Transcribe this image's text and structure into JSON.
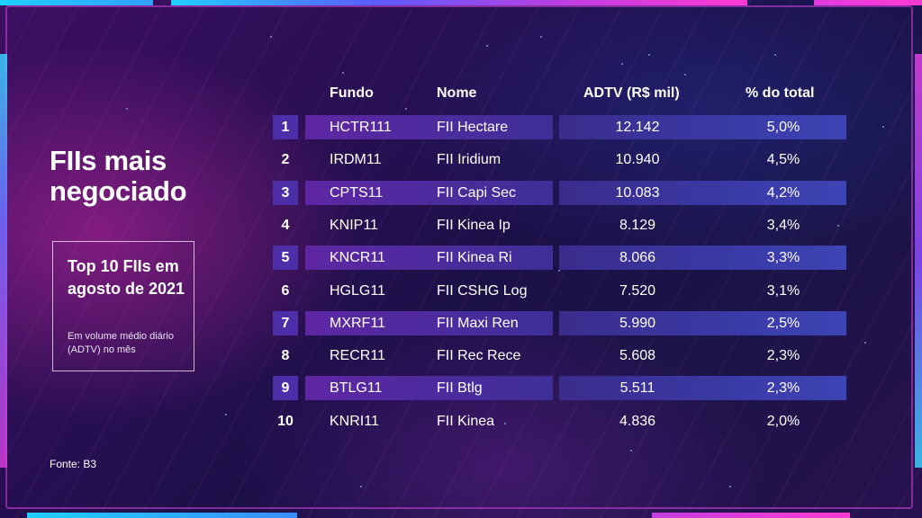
{
  "title": "FIIs mais negociado",
  "box": {
    "title": "Top 10 FIIs em agosto de 2021",
    "subtitle": "Em volume médio diário (ADTV) no mês"
  },
  "source": "Fonte: B3",
  "table": {
    "headers": {
      "fundo": "Fundo",
      "nome": "Nome",
      "adtv": "ADTV (R$ mil)",
      "pct": "% do total"
    },
    "rows": [
      {
        "rank": "1",
        "fundo": "HCTR111",
        "nome": "FII Hectare",
        "adtv": "12.142",
        "pct": "5,0%",
        "highlight": true
      },
      {
        "rank": "2",
        "fundo": "IRDM11",
        "nome": "FII Iridium",
        "adtv": "10.940",
        "pct": "4,5%",
        "highlight": false
      },
      {
        "rank": "3",
        "fundo": "CPTS11",
        "nome": "FII Capi Sec",
        "adtv": "10.083",
        "pct": "4,2%",
        "highlight": true
      },
      {
        "rank": "4",
        "fundo": "KNIP11",
        "nome": "FII Kinea Ip",
        "adtv": "8.129",
        "pct": "3,4%",
        "highlight": false
      },
      {
        "rank": "5",
        "fundo": "KNCR11",
        "nome": "FII Kinea Ri",
        "adtv": "8.066",
        "pct": "3,3%",
        "highlight": true
      },
      {
        "rank": "6",
        "fundo": "HGLG11",
        "nome": "FII CSHG Log",
        "adtv": "7.520",
        "pct": "3,1%",
        "highlight": false
      },
      {
        "rank": "7",
        "fundo": "MXRF11",
        "nome": "FII Maxi Ren",
        "adtv": "5.990",
        "pct": "2,5%",
        "highlight": true
      },
      {
        "rank": "8",
        "fundo": "RECR11",
        "nome": "FII Rec Rece",
        "adtv": "5.608",
        "pct": "2,3%",
        "highlight": false
      },
      {
        "rank": "9",
        "fundo": "BTLG11",
        "nome": "FII Btlg",
        "adtv": "5.511",
        "pct": "2,3%",
        "highlight": true
      },
      {
        "rank": "10",
        "fundo": "KNRI11",
        "nome": "FII Kinea",
        "adtv": "4.836",
        "pct": "2,0%",
        "highlight": false
      }
    ]
  },
  "colors": {
    "background": "#1c1048",
    "accent_pink": "#d43bd8",
    "accent_cyan": "#1fd0ff",
    "row_highlight": "#4a2c9c"
  }
}
